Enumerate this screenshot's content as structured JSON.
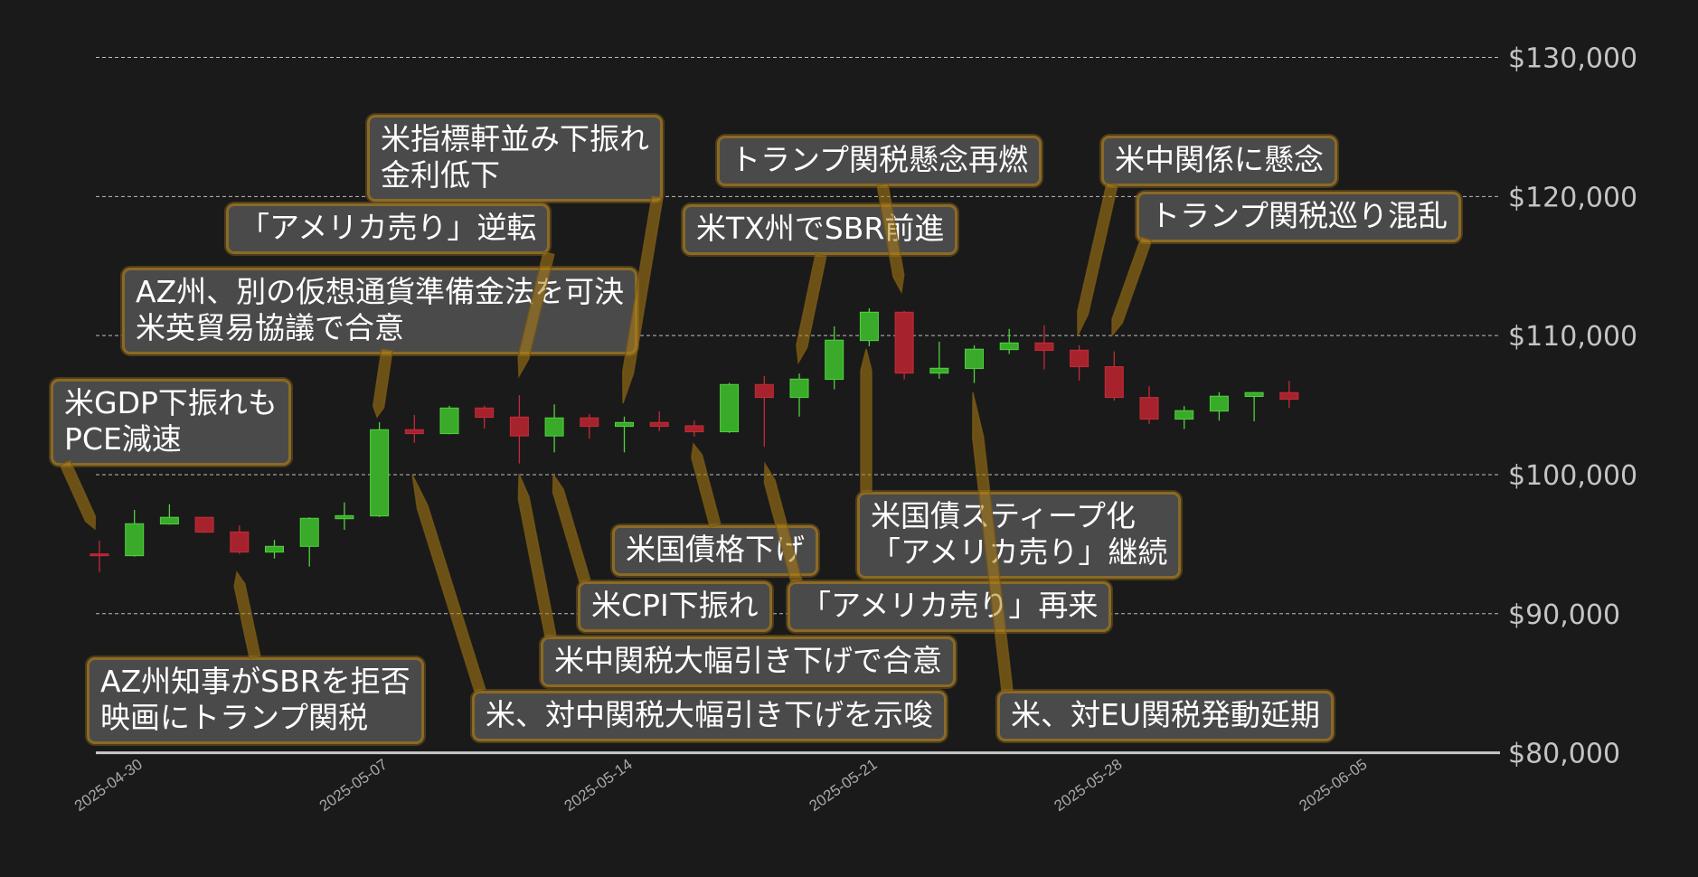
{
  "chart_data": {
    "type": "candlestick",
    "title": "",
    "xlabel": "",
    "ylabel": "",
    "ylim": [
      80000,
      130000
    ],
    "xlim": [
      "2025-04-29",
      "2025-06-08"
    ],
    "grid": "horizontal dashed",
    "y_ticks": [
      "$80,000",
      "$90,000",
      "$100,000",
      "$110,000",
      "$120,000",
      "$130,000"
    ],
    "y_tick_values": [
      80000,
      90000,
      100000,
      110000,
      120000,
      130000
    ],
    "x_ticks": [
      "2025-04-30",
      "2025-05-07",
      "2025-05-14",
      "2025-05-21",
      "2025-05-28",
      "2025-06-05"
    ],
    "colors": {
      "up": "#3aaa2a",
      "down": "#a6232e",
      "background": "#1a1a1a",
      "annotation_border": "#8a6a25",
      "annotation_fill": "#4a4a4a"
    },
    "candles": [
      {
        "date": "2025-04-29",
        "open": 94300,
        "high": 95250,
        "low": 92990,
        "close": 94200
      },
      {
        "date": "2025-04-30",
        "open": 94170,
        "high": 97460,
        "low": 94100,
        "close": 96470
      },
      {
        "date": "2025-05-01",
        "open": 96450,
        "high": 97870,
        "low": 96400,
        "close": 96930
      },
      {
        "date": "2025-05-02",
        "open": 96930,
        "high": 96950,
        "low": 95800,
        "close": 95860
      },
      {
        "date": "2025-05-03",
        "open": 95880,
        "high": 96340,
        "low": 94300,
        "close": 94430
      },
      {
        "date": "2025-05-04",
        "open": 94430,
        "high": 95310,
        "low": 93970,
        "close": 94840
      },
      {
        "date": "2025-05-05",
        "open": 94840,
        "high": 96930,
        "low": 93390,
        "close": 96860
      },
      {
        "date": "2025-05-06",
        "open": 96830,
        "high": 98000,
        "low": 96030,
        "close": 97050
      },
      {
        "date": "2025-05-07",
        "open": 97030,
        "high": 103770,
        "low": 96950,
        "close": 103230
      },
      {
        "date": "2025-05-08",
        "open": 103230,
        "high": 104290,
        "low": 102290,
        "close": 102950
      },
      {
        "date": "2025-05-09",
        "open": 102950,
        "high": 104950,
        "low": 102900,
        "close": 104790
      },
      {
        "date": "2025-05-10",
        "open": 104790,
        "high": 104950,
        "low": 103300,
        "close": 104120
      },
      {
        "date": "2025-05-11",
        "open": 104140,
        "high": 105710,
        "low": 100800,
        "close": 102780
      },
      {
        "date": "2025-05-12",
        "open": 102780,
        "high": 105050,
        "low": 101600,
        "close": 104080
      },
      {
        "date": "2025-05-13",
        "open": 104080,
        "high": 104360,
        "low": 102590,
        "close": 103470
      },
      {
        "date": "2025-05-14",
        "open": 103470,
        "high": 104170,
        "low": 101600,
        "close": 103750
      },
      {
        "date": "2025-05-15",
        "open": 103750,
        "high": 104550,
        "low": 103140,
        "close": 103470
      },
      {
        "date": "2025-05-16",
        "open": 103510,
        "high": 103900,
        "low": 102730,
        "close": 103080
      },
      {
        "date": "2025-05-17",
        "open": 103080,
        "high": 106600,
        "low": 103000,
        "close": 106480
      },
      {
        "date": "2025-05-18",
        "open": 106480,
        "high": 107100,
        "low": 102000,
        "close": 105550
      },
      {
        "date": "2025-05-19",
        "open": 105550,
        "high": 107270,
        "low": 104170,
        "close": 106870
      },
      {
        "date": "2025-05-20",
        "open": 106850,
        "high": 110660,
        "low": 106130,
        "close": 109670
      },
      {
        "date": "2025-05-21",
        "open": 109640,
        "high": 111960,
        "low": 109230,
        "close": 111680
      },
      {
        "date": "2025-05-22",
        "open": 111680,
        "high": 111770,
        "low": 106850,
        "close": 107300
      },
      {
        "date": "2025-05-23",
        "open": 107300,
        "high": 109560,
        "low": 106890,
        "close": 107650
      },
      {
        "date": "2025-05-24",
        "open": 107630,
        "high": 109300,
        "low": 106590,
        "close": 109020
      },
      {
        "date": "2025-05-25",
        "open": 108990,
        "high": 110480,
        "low": 108680,
        "close": 109470
      },
      {
        "date": "2025-05-26",
        "open": 109470,
        "high": 110740,
        "low": 107560,
        "close": 108930
      },
      {
        "date": "2025-05-27",
        "open": 108950,
        "high": 109300,
        "low": 106770,
        "close": 107760
      },
      {
        "date": "2025-05-28",
        "open": 107760,
        "high": 108860,
        "low": 105330,
        "close": 105550
      },
      {
        "date": "2025-05-29",
        "open": 105550,
        "high": 106350,
        "low": 103640,
        "close": 103990
      },
      {
        "date": "2025-05-30",
        "open": 103990,
        "high": 104930,
        "low": 103280,
        "close": 104600
      },
      {
        "date": "2025-05-31",
        "open": 104570,
        "high": 105930,
        "low": 103880,
        "close": 105640
      },
      {
        "date": "2025-06-01",
        "open": 105620,
        "high": 105950,
        "low": 103840,
        "close": 105900
      },
      {
        "date": "2025-06-02",
        "open": 105900,
        "high": 106740,
        "low": 104800,
        "close": 105420
      }
    ],
    "annotations": [
      {
        "date": "2025-04-29",
        "text": "米GDP下振れも\nPCE減速"
      },
      {
        "date": "2025-05-03",
        "text": "AZ州知事がSBRを拒否\n映画にトランプ関税"
      },
      {
        "date": "2025-05-07",
        "text": "AZ州、別の仮想通貨準備金法を可決\n米英貿易協議で合意"
      },
      {
        "date": "2025-05-11",
        "text": "「アメリカ売り」逆転"
      },
      {
        "date": "2025-05-14",
        "text": "米指標軒並み下振れ\n金利低下"
      },
      {
        "date": "2025-05-22",
        "text": "トランプ関税懸念再燃"
      },
      {
        "date": "2025-05-19",
        "text": "米TX州でSBR前進"
      },
      {
        "date": "2025-05-27",
        "text": "米中関係に懸念"
      },
      {
        "date": "2025-05-28",
        "text": "トランプ関税巡り混乱"
      },
      {
        "date": "2025-05-16",
        "text": "米国債格下げ"
      },
      {
        "date": "2025-05-12",
        "text": "米CPI下振れ"
      },
      {
        "date": "2025-05-18",
        "text": "「アメリカ売り」再来"
      },
      {
        "date": "2025-05-21",
        "text": "米国債スティープ化\n「アメリカ売り」継続"
      },
      {
        "date": "2025-05-11",
        "text": "米中関税大幅引き下げで合意"
      },
      {
        "date": "2025-05-08",
        "text": "米、対中関税大幅引き下げを示唆"
      },
      {
        "date": "2025-05-24",
        "text": "米、対EU関税発動延期"
      }
    ]
  }
}
